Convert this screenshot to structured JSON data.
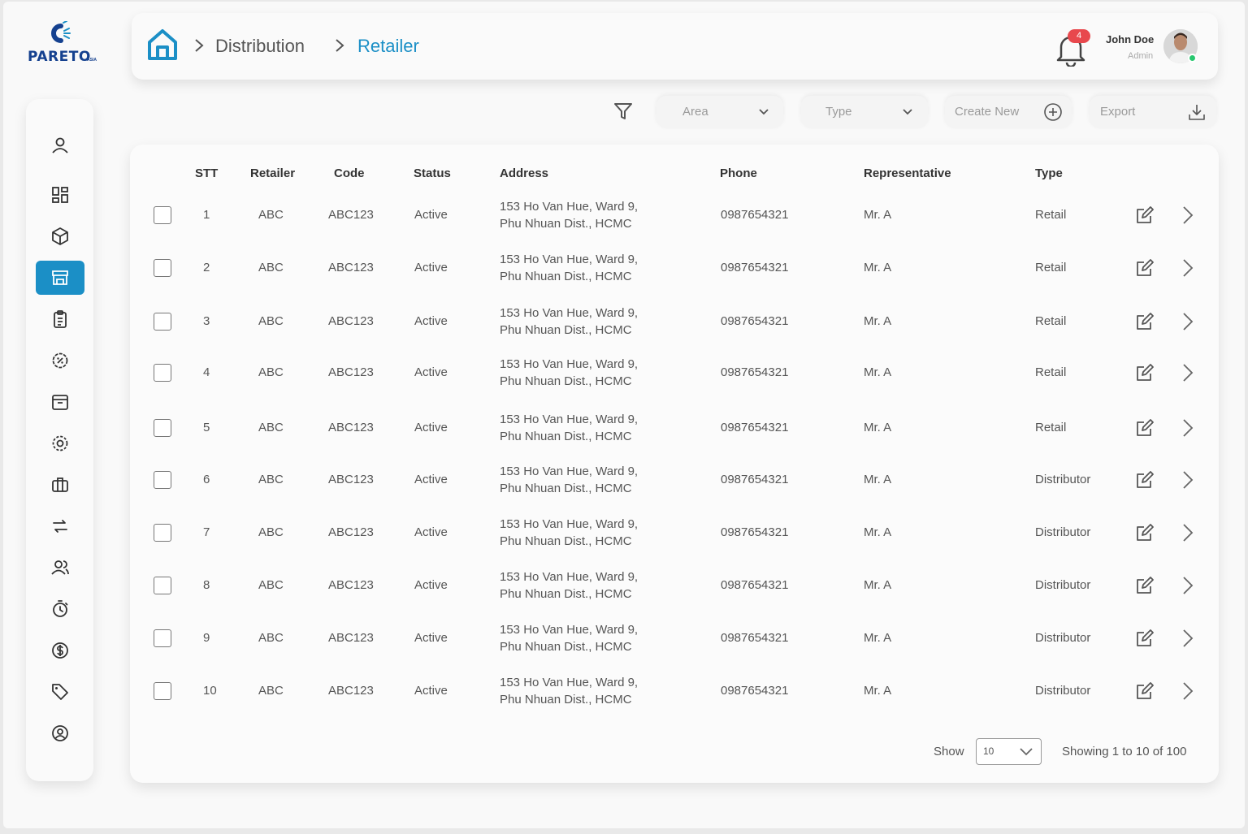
{
  "brand": {
    "logo_text": "PARETO",
    "logo_sub": "ASIA"
  },
  "breadcrumb": {
    "items": [
      "Distribution",
      "Retailer"
    ]
  },
  "user": {
    "name": "John Doe",
    "role": "Admin",
    "notifications": "4"
  },
  "toolbar": {
    "area_label": "Area",
    "type_label": "Type",
    "create_label": "Create New",
    "export_label": "Export"
  },
  "sidebar": {
    "items": [
      "user-icon",
      "dashboard-icon",
      "box-icon",
      "store-icon",
      "clipboard-icon",
      "discount-gear-icon",
      "archive-icon",
      "settings-icon",
      "briefcase-icon",
      "transfer-icon",
      "users-icon",
      "timer-icon",
      "dollar-icon",
      "tag-icon",
      "account-icon"
    ],
    "active_index": 3
  },
  "table": {
    "headers": [
      "STT",
      "Retailer",
      "Code",
      "Status",
      "Address",
      "Phone",
      "Representative",
      "Type"
    ],
    "rows": [
      {
        "stt": "1",
        "retailer": "ABC",
        "code": "ABC123",
        "status": "Active",
        "address1": "153 Ho Van Hue, Ward 9,",
        "address2": "Phu Nhuan Dist., HCMC",
        "phone": "0987654321",
        "rep": "Mr. A",
        "type": "Retail"
      },
      {
        "stt": "2",
        "retailer": "ABC",
        "code": "ABC123",
        "status": "Active",
        "address1": "153 Ho Van Hue, Ward 9,",
        "address2": "Phu Nhuan Dist., HCMC",
        "phone": "0987654321",
        "rep": "Mr. A",
        "type": "Retail"
      },
      {
        "stt": "3",
        "retailer": "ABC",
        "code": "ABC123",
        "status": "Active",
        "address1": "153 Ho Van Hue, Ward 9,",
        "address2": "Phu Nhuan Dist., HCMC",
        "phone": "0987654321",
        "rep": "Mr. A",
        "type": "Retail"
      },
      {
        "stt": "4",
        "retailer": "ABC",
        "code": "ABC123",
        "status": "Active",
        "address1": "153 Ho Van Hue, Ward 9,",
        "address2": "Phu Nhuan Dist., HCMC",
        "phone": "0987654321",
        "rep": "Mr. A",
        "type": "Retail"
      },
      {
        "stt": "5",
        "retailer": "ABC",
        "code": "ABC123",
        "status": "Active",
        "address1": "153 Ho Van Hue, Ward 9,",
        "address2": "Phu Nhuan Dist., HCMC",
        "phone": "0987654321",
        "rep": "Mr. A",
        "type": "Retail"
      },
      {
        "stt": "6",
        "retailer": "ABC",
        "code": "ABC123",
        "status": "Active",
        "address1": "153 Ho Van Hue, Ward 9,",
        "address2": "Phu Nhuan Dist., HCMC",
        "phone": "0987654321",
        "rep": "Mr. A",
        "type": "Distributor"
      },
      {
        "stt": "7",
        "retailer": "ABC",
        "code": "ABC123",
        "status": "Active",
        "address1": "153 Ho Van Hue, Ward 9,",
        "address2": "Phu Nhuan Dist., HCMC",
        "phone": "0987654321",
        "rep": "Mr. A",
        "type": "Distributor"
      },
      {
        "stt": "8",
        "retailer": "ABC",
        "code": "ABC123",
        "status": "Active",
        "address1": "153 Ho Van Hue, Ward 9,",
        "address2": "Phu Nhuan Dist., HCMC",
        "phone": "0987654321",
        "rep": "Mr. A",
        "type": "Distributor"
      },
      {
        "stt": "9",
        "retailer": "ABC",
        "code": "ABC123",
        "status": "Active",
        "address1": "153 Ho Van Hue, Ward 9,",
        "address2": "Phu Nhuan Dist., HCMC",
        "phone": "0987654321",
        "rep": "Mr. A",
        "type": "Distributor"
      },
      {
        "stt": "10",
        "retailer": "ABC",
        "code": "ABC123",
        "status": "Active",
        "address1": "153 Ho Van Hue, Ward 9,",
        "address2": "Phu Nhuan Dist., HCMC",
        "phone": "0987654321",
        "rep": "Mr. A",
        "type": "Distributor"
      }
    ]
  },
  "pagination": {
    "show_label": "Show",
    "page_size": "10",
    "summary": "Showing 1 to 10 of 100"
  },
  "colors": {
    "accent": "#1b8fc6",
    "brand": "#15418f",
    "badge": "#e8484d",
    "online": "#28c76f"
  }
}
